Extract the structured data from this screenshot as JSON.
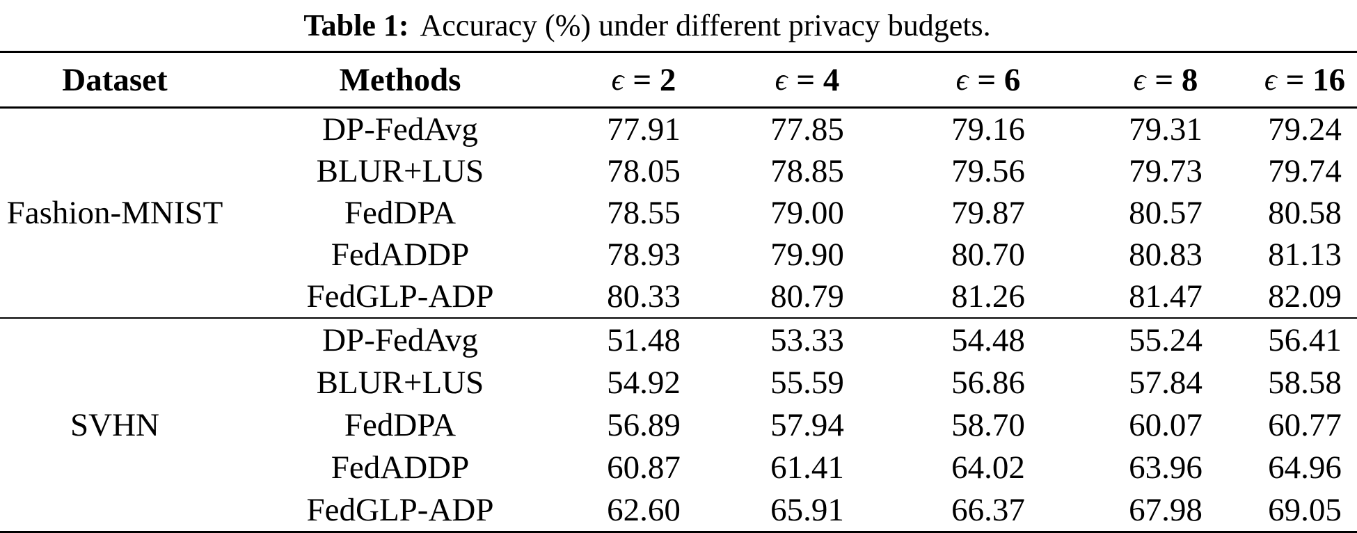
{
  "title": {
    "label": "Table 1:",
    "caption": "Accuracy (%) under different privacy budgets."
  },
  "table": {
    "col_headers": {
      "dataset": "Dataset",
      "methods": "Methods",
      "epsilon_symbol": "ϵ",
      "epsilon_values": [
        "= 2",
        "= 4",
        "= 6",
        "= 8",
        "= 16"
      ]
    },
    "groups": [
      {
        "dataset": "Fashion-MNIST",
        "rows": [
          {
            "method": "DP-FedAvg",
            "values": [
              "77.91",
              "77.85",
              "79.16",
              "79.31",
              "79.24"
            ]
          },
          {
            "method": "BLUR+LUS",
            "values": [
              "78.05",
              "78.85",
              "79.56",
              "79.73",
              "79.74"
            ]
          },
          {
            "method": "FedDPA",
            "values": [
              "78.55",
              "79.00",
              "79.87",
              "80.57",
              "80.58"
            ]
          },
          {
            "method": "FedADDP",
            "values": [
              "78.93",
              "79.90",
              "80.70",
              "80.83",
              "81.13"
            ]
          },
          {
            "method": "FedGLP-ADP",
            "values": [
              "80.33",
              "80.79",
              "81.26",
              "81.47",
              "82.09"
            ]
          }
        ]
      },
      {
        "dataset": "SVHN",
        "rows": [
          {
            "method": "DP-FedAvg",
            "values": [
              "51.48",
              "53.33",
              "54.48",
              "55.24",
              "56.41"
            ]
          },
          {
            "method": "BLUR+LUS",
            "values": [
              "54.92",
              "55.59",
              "56.86",
              "57.84",
              "58.58"
            ]
          },
          {
            "method": "FedDPA",
            "values": [
              "56.89",
              "57.94",
              "58.70",
              "60.07",
              "60.77"
            ]
          },
          {
            "method": "FedADDP",
            "values": [
              "60.87",
              "61.41",
              "64.02",
              "63.96",
              "64.96"
            ]
          },
          {
            "method": "FedGLP-ADP",
            "values": [
              "62.60",
              "65.91",
              "66.37",
              "67.98",
              "69.05"
            ]
          }
        ]
      }
    ]
  },
  "colors": {
    "background": "#ffffff",
    "text": "#000000",
    "rule": "#000000"
  }
}
